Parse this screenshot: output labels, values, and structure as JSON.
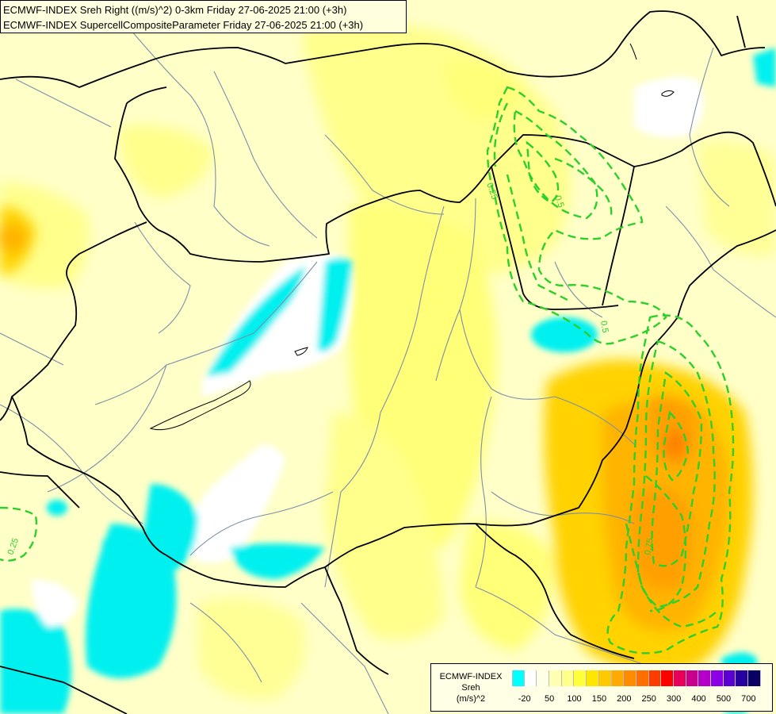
{
  "header": {
    "line1": "ECMWF-INDEX Sreh Right ((m/s)^2) 0-3km Friday 27-06-2025 21:00 (+3h)",
    "line2": "ECMWF-INDEX SupercellCompositeParameter Friday 27-06-2025 21:00 (+3h)"
  },
  "legend": {
    "title": "ECMWF-INDEX",
    "variable": "Sreh",
    "units": "(m/s)^2",
    "tick_labels": [
      "-20",
      "50",
      "100",
      "150",
      "200",
      "250",
      "300",
      "400",
      "500",
      "700"
    ],
    "colors": [
      "#00ffff",
      "#ffffff",
      "#ffffe6",
      "#ffffb4",
      "#ffff8c",
      "#ffff3c",
      "#ffe600",
      "#ffc800",
      "#ffaa00",
      "#ff8c00",
      "#ff6e00",
      "#ff3c00",
      "#ff0000",
      "#e6005a",
      "#c8008c",
      "#b400c8",
      "#8c00e6",
      "#5a00d2",
      "#2800a0",
      "#0a0064"
    ]
  },
  "contour_labels": {
    "label_a": "0.25",
    "label_b": "0.25",
    "label_c": "0.5",
    "label_d": "0.5",
    "label_e": "0.75"
  },
  "colors": {
    "contour": "#2ccf2c",
    "border": "#000000",
    "river": "#7c8fa8"
  }
}
